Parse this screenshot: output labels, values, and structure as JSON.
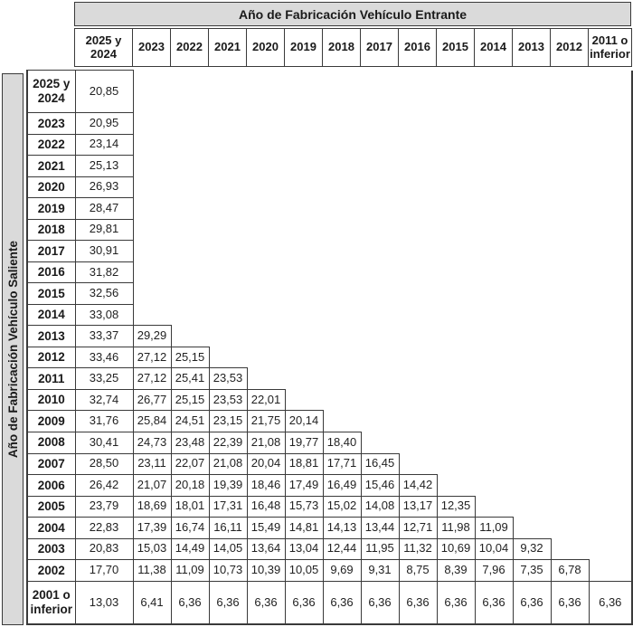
{
  "table": {
    "entrante_header": "Año de Fabricación Vehículo Entrante",
    "saliente_header": "Año de Fabricación Vehículo Saliente",
    "columns": [
      "2025 y 2024",
      "2023",
      "2022",
      "2021",
      "2020",
      "2019",
      "2018",
      "2017",
      "2016",
      "2015",
      "2014",
      "2013",
      "2012",
      "2011 o inferior"
    ],
    "rows": [
      {
        "label": "2025 y 2024",
        "values": [
          "20,85"
        ]
      },
      {
        "label": "2023",
        "values": [
          "20,95"
        ]
      },
      {
        "label": "2022",
        "values": [
          "23,14"
        ]
      },
      {
        "label": "2021",
        "values": [
          "25,13"
        ]
      },
      {
        "label": "2020",
        "values": [
          "26,93"
        ]
      },
      {
        "label": "2019",
        "values": [
          "28,47"
        ]
      },
      {
        "label": "2018",
        "values": [
          "29,81"
        ]
      },
      {
        "label": "2017",
        "values": [
          "30,91"
        ]
      },
      {
        "label": "2016",
        "values": [
          "31,82"
        ]
      },
      {
        "label": "2015",
        "values": [
          "32,56"
        ]
      },
      {
        "label": "2014",
        "values": [
          "33,08"
        ]
      },
      {
        "label": "2013",
        "values": [
          "33,37",
          "29,29"
        ]
      },
      {
        "label": "2012",
        "values": [
          "33,46",
          "27,12",
          "25,15"
        ]
      },
      {
        "label": "2011",
        "values": [
          "33,25",
          "27,12",
          "25,41",
          "23,53"
        ]
      },
      {
        "label": "2010",
        "values": [
          "32,74",
          "26,77",
          "25,15",
          "23,53",
          "22,01"
        ]
      },
      {
        "label": "2009",
        "values": [
          "31,76",
          "25,84",
          "24,51",
          "23,15",
          "21,75",
          "20,14"
        ]
      },
      {
        "label": "2008",
        "values": [
          "30,41",
          "24,73",
          "23,48",
          "22,39",
          "21,08",
          "19,77",
          "18,40"
        ]
      },
      {
        "label": "2007",
        "values": [
          "28,50",
          "23,11",
          "22,07",
          "21,08",
          "20,04",
          "18,81",
          "17,71",
          "16,45"
        ]
      },
      {
        "label": "2006",
        "values": [
          "26,42",
          "21,07",
          "20,18",
          "19,39",
          "18,46",
          "17,49",
          "16,49",
          "15,46",
          "14,42"
        ]
      },
      {
        "label": "2005",
        "values": [
          "23,79",
          "18,69",
          "18,01",
          "17,31",
          "16,48",
          "15,73",
          "15,02",
          "14,08",
          "13,17",
          "12,35"
        ]
      },
      {
        "label": "2004",
        "values": [
          "22,83",
          "17,39",
          "16,74",
          "16,11",
          "15,49",
          "14,81",
          "14,13",
          "13,44",
          "12,71",
          "11,98",
          "11,09"
        ]
      },
      {
        "label": "2003",
        "values": [
          "20,83",
          "15,03",
          "14,49",
          "14,05",
          "13,64",
          "13,04",
          "12,44",
          "11,95",
          "11,32",
          "10,69",
          "10,04",
          "9,32"
        ]
      },
      {
        "label": "2002",
        "values": [
          "17,70",
          "11,38",
          "11,09",
          "10,73",
          "10,39",
          "10,05",
          "9,69",
          "9,31",
          "8,75",
          "8,39",
          "7,96",
          "7,35",
          "6,78"
        ]
      },
      {
        "label": "2001 o inferior",
        "values": [
          "13,03",
          "6,41",
          "6,36",
          "6,36",
          "6,36",
          "6,36",
          "6,36",
          "6,36",
          "6,36",
          "6,36",
          "6,36",
          "6,36",
          "6,36",
          "6,36"
        ]
      }
    ],
    "colors": {
      "header_bg": "#dadada",
      "border": "#3a3a3a"
    }
  }
}
